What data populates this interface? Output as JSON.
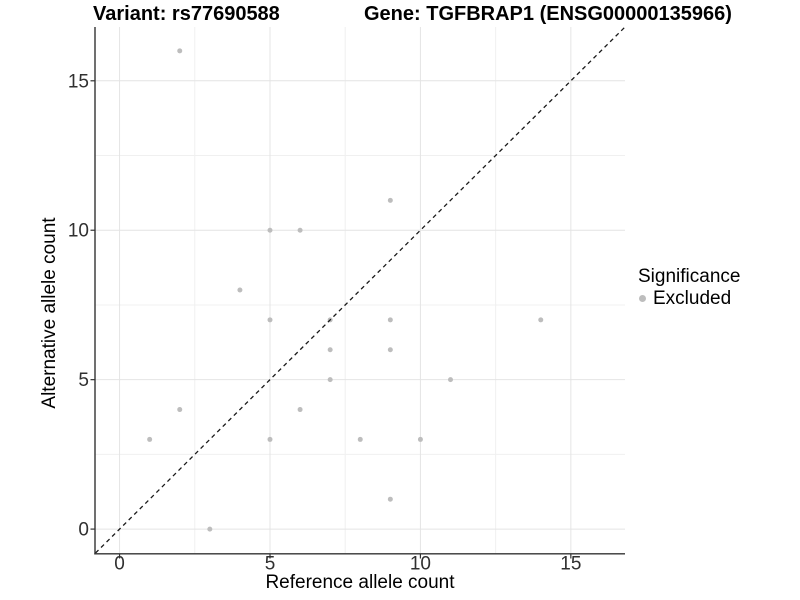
{
  "figure": {
    "title_variant": "Variant: rs77690588",
    "title_gene": "Gene: TGFBRAP1 (ENSG00000135966)"
  },
  "axes": {
    "x_title": "Reference allele count",
    "y_title": "Alternative allele count"
  },
  "legend": {
    "title": "Significance",
    "entries": [
      {
        "label": "Excluded",
        "color": "#BDBDBD"
      }
    ]
  },
  "colors": {
    "background": "#FFFFFF",
    "grid_major": "#E4E4E4",
    "grid_minor": "#F0F0F0",
    "axis_line": "#333333",
    "tick_text": "#303030",
    "point": "#BDBDBD",
    "dashed_line": "#1A1A1A"
  },
  "chart_data": {
    "type": "scatter",
    "title": "Variant: rs77690588 — Gene: TGFBRAP1 (ENSG00000135966)",
    "xlabel": "Reference allele count",
    "ylabel": "Alternative allele count",
    "xlim": [
      -0.8,
      16.8
    ],
    "ylim": [
      -0.8,
      16.8
    ],
    "xticks": [
      0,
      5,
      10,
      15
    ],
    "yticks": [
      0,
      5,
      10,
      15
    ],
    "x_minor_gridlines": [
      2.5,
      7.5,
      12.5
    ],
    "y_minor_gridlines": [
      2.5,
      7.5,
      12.5
    ],
    "grid": true,
    "legend_position": "right",
    "identity_line": {
      "slope": 1,
      "intercept": 0,
      "style": "dashed"
    },
    "series": [
      {
        "name": "Excluded",
        "color": "#BDBDBD",
        "marker": "circle",
        "points": [
          [
            1,
            3
          ],
          [
            2,
            4
          ],
          [
            2,
            16
          ],
          [
            3,
            0
          ],
          [
            4,
            8
          ],
          [
            5,
            3
          ],
          [
            5,
            7
          ],
          [
            5,
            10
          ],
          [
            6,
            4
          ],
          [
            6,
            10
          ],
          [
            7,
            5
          ],
          [
            7,
            6
          ],
          [
            7,
            7
          ],
          [
            8,
            3
          ],
          [
            9,
            1
          ],
          [
            9,
            6
          ],
          [
            9,
            7
          ],
          [
            9,
            11
          ],
          [
            10,
            3
          ],
          [
            11,
            5
          ],
          [
            14,
            7
          ]
        ]
      }
    ]
  }
}
